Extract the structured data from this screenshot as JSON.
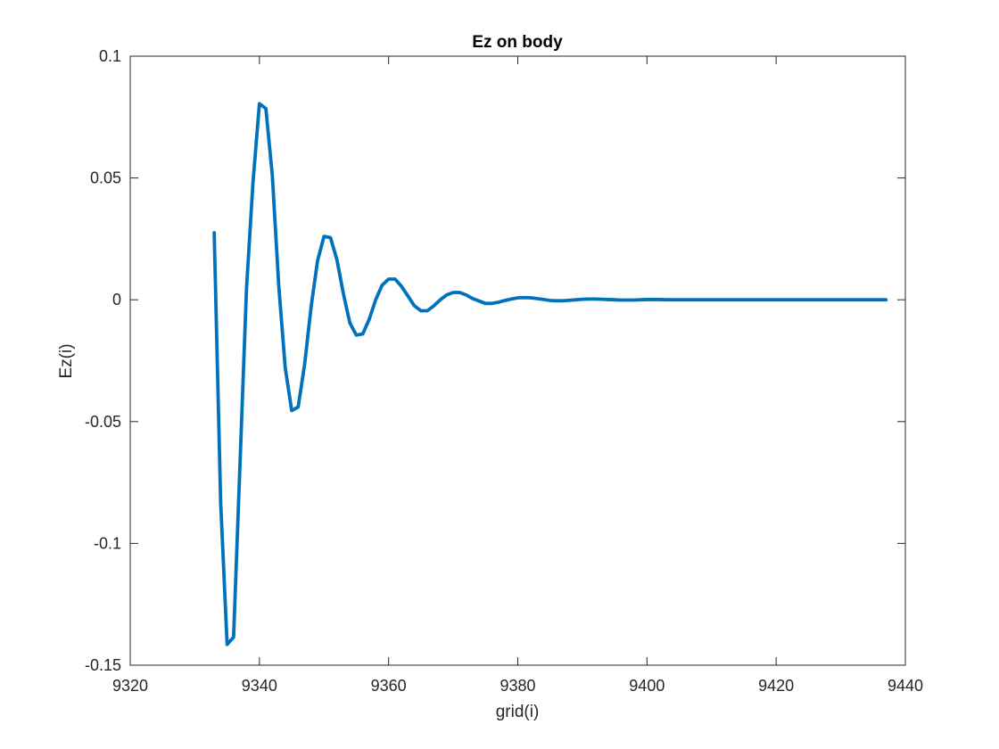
{
  "chart_data": {
    "type": "line",
    "title": "Ez on body",
    "xlabel": "grid(i)",
    "ylabel": "Ez(i)",
    "xlim": [
      9320,
      9440
    ],
    "ylim": [
      -0.15,
      0.1
    ],
    "xticks": [
      9320,
      9340,
      9360,
      9380,
      9400,
      9420,
      9440
    ],
    "xtick_labels": [
      "9320",
      "9340",
      "9360",
      "9380",
      "9400",
      "9420",
      "9440"
    ],
    "yticks": [
      -0.15,
      -0.1,
      -0.05,
      0,
      0.05,
      0.1
    ],
    "ytick_labels": [
      "-0.15",
      "-0.1",
      "-0.05",
      "0",
      "0.05",
      "0.1"
    ],
    "grid": false,
    "box": true,
    "series": [
      {
        "color": "#0072bd",
        "x": [
          9333,
          9334,
          9335,
          9336,
          9337,
          9338,
          9339,
          9340,
          9341,
          9342,
          9343,
          9344,
          9345,
          9346,
          9347,
          9348,
          9349,
          9350,
          9351,
          9352,
          9353,
          9354,
          9355,
          9356,
          9357,
          9358,
          9359,
          9360,
          9361,
          9362,
          9363,
          9364,
          9365,
          9366,
          9367,
          9368,
          9369,
          9370,
          9371,
          9372,
          9373,
          9374,
          9375,
          9376,
          9377,
          9378,
          9379,
          9380,
          9381,
          9382,
          9383,
          9384,
          9385,
          9386,
          9387,
          9388,
          9389,
          9390,
          9391,
          9392,
          9393,
          9394,
          9395,
          9396,
          9397,
          9398,
          9399,
          9400,
          9401,
          9402,
          9403,
          9404,
          9405,
          9406,
          9407,
          9408,
          9409,
          9410,
          9411,
          9412,
          9413,
          9414,
          9415,
          9416,
          9417,
          9418,
          9419,
          9420,
          9421,
          9422,
          9423,
          9424,
          9425,
          9426,
          9427,
          9428,
          9429,
          9430,
          9431,
          9432,
          9433,
          9434,
          9435,
          9436,
          9437
        ],
        "y": [
          0.0275,
          -0.083,
          -0.1415,
          -0.1385,
          -0.067,
          0.0045,
          0.048,
          0.0805,
          0.0785,
          0.051,
          0.0055,
          -0.028,
          -0.0455,
          -0.044,
          -0.0265,
          -0.003,
          0.016,
          0.026,
          0.0255,
          0.0165,
          0.0025,
          -0.0095,
          -0.0145,
          -0.014,
          -0.008,
          0.0,
          0.006,
          0.0085,
          0.0085,
          0.0055,
          0.0015,
          -0.0025,
          -0.0045,
          -0.0045,
          -0.0025,
          0.0,
          0.002,
          0.003,
          0.003,
          0.002,
          0.0005,
          -0.0005,
          -0.0015,
          -0.0015,
          -0.001,
          -0.0003,
          0.0003,
          0.0008,
          0.0009,
          0.0008,
          0.0005,
          0.0001,
          -0.0003,
          -0.0004,
          -0.0004,
          -0.0002,
          0.0,
          0.0002,
          0.0003,
          0.0003,
          0.0002,
          0.0001,
          0.0,
          -0.0001,
          -0.0001,
          -0.0001,
          0.0,
          0.0001,
          0.0001,
          0.0001,
          0.0,
          0.0,
          0.0,
          0.0,
          0.0,
          0.0,
          0.0,
          0.0,
          0.0,
          0.0,
          0.0,
          0.0,
          0.0,
          0.0,
          0.0,
          0.0,
          0.0,
          0.0,
          0.0,
          0.0,
          0.0,
          0.0,
          0.0,
          0.0,
          0.0,
          0.0,
          0.0,
          0.0,
          0.0,
          0.0,
          0.0,
          0.0,
          0.0,
          0.0,
          0.0
        ]
      }
    ]
  }
}
